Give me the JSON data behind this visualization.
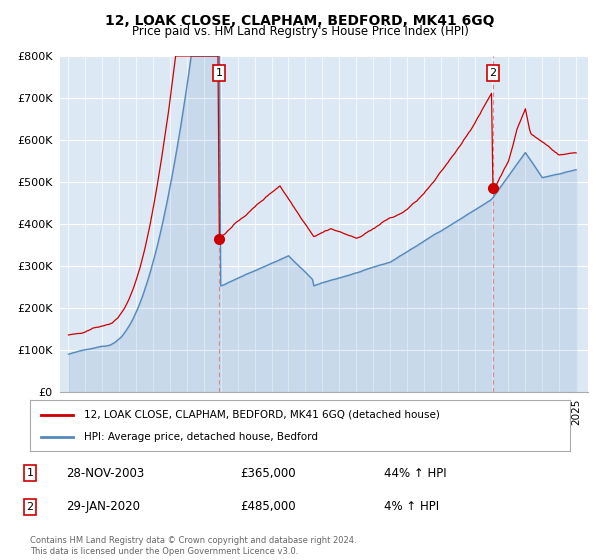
{
  "title": "12, LOAK CLOSE, CLAPHAM, BEDFORD, MK41 6GQ",
  "subtitle": "Price paid vs. HM Land Registry's House Price Index (HPI)",
  "ylim": [
    0,
    800000
  ],
  "yticks": [
    0,
    100000,
    200000,
    300000,
    400000,
    500000,
    600000,
    700000,
    800000
  ],
  "ytick_labels": [
    "£0",
    "£100K",
    "£200K",
    "£300K",
    "£400K",
    "£500K",
    "£600K",
    "£700K",
    "£800K"
  ],
  "legend_label_red": "12, LOAK CLOSE, CLAPHAM, BEDFORD, MK41 6GQ (detached house)",
  "legend_label_blue": "HPI: Average price, detached house, Bedford",
  "transaction1_date": "28-NOV-2003",
  "transaction1_price": "£365,000",
  "transaction1_hpi": "44% ↑ HPI",
  "transaction2_date": "29-JAN-2020",
  "transaction2_price": "£485,000",
  "transaction2_hpi": "4% ↑ HPI",
  "footer": "Contains HM Land Registry data © Crown copyright and database right 2024.\nThis data is licensed under the Open Government Licence v3.0.",
  "red_color": "#cc0000",
  "blue_color": "#5588bb",
  "dashed_red_color": "#dd8888",
  "chart_bg_color": "#dde8f5",
  "background_color": "#ffffff",
  "grid_color": "#ffffff",
  "marker1_x_year": 2003.9,
  "marker1_y": 365000,
  "marker2_x_year": 2020.08,
  "marker2_y": 485000,
  "vline1_x": 2003.9,
  "vline2_x": 2020.08,
  "xlim_left": 1994.5,
  "xlim_right": 2025.7
}
